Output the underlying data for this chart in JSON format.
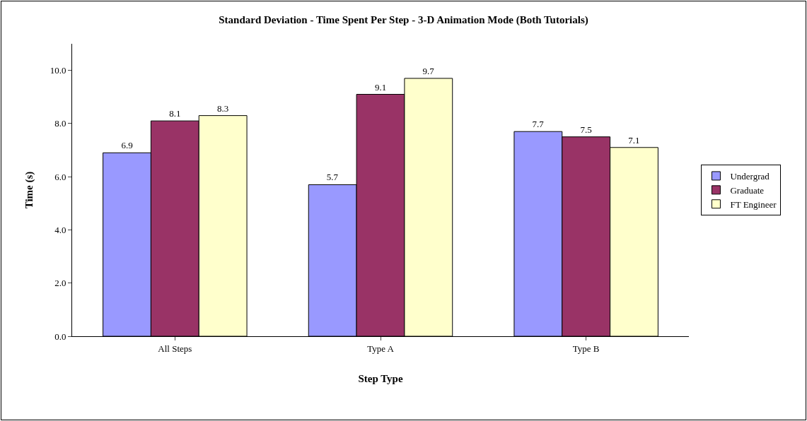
{
  "chart_data": {
    "type": "bar",
    "title": "Standard Deviation - Time Spent Per Step - 3-D Animation Mode (Both Tutorials)",
    "xlabel": "Step Type",
    "ylabel": "Time (s)",
    "categories": [
      "All Steps",
      "Type A",
      "Type B"
    ],
    "series": [
      {
        "name": "Undergrad",
        "color": "#9999ff",
        "values": [
          6.9,
          5.7,
          7.7
        ]
      },
      {
        "name": "Graduate",
        "color": "#993366",
        "values": [
          8.1,
          9.1,
          7.5
        ]
      },
      {
        "name": "FT Engineer",
        "color": "#ffffcc",
        "values": [
          8.3,
          9.7,
          7.1
        ]
      }
    ],
    "ylim": [
      0,
      11
    ],
    "yticks": [
      {
        "value": 0,
        "label": "0.0"
      },
      {
        "value": 2,
        "label": "2.0"
      },
      {
        "value": 4,
        "label": "4.0"
      },
      {
        "value": 6,
        "label": "6.0"
      },
      {
        "value": 8,
        "label": "8.0"
      },
      {
        "value": 10,
        "label": "10.0"
      }
    ],
    "grid": false,
    "legend": "right",
    "data_labels": true
  }
}
